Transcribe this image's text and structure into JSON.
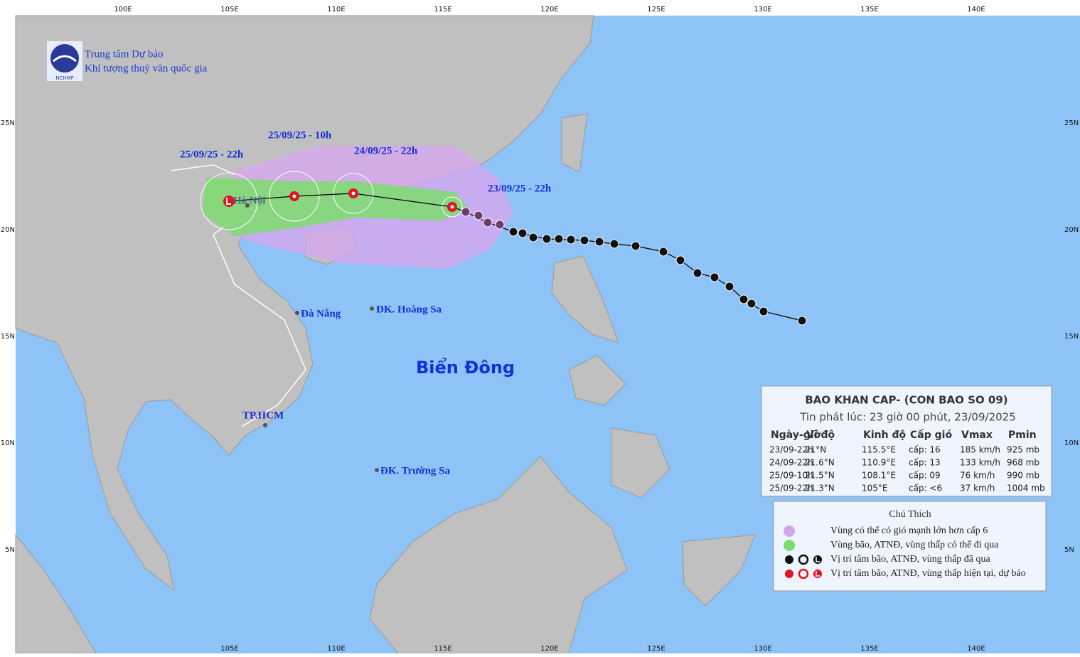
{
  "header": {
    "line1": "Trung tâm Dự báo",
    "line2": "Khí tượng thuỷ văn quốc gia",
    "logo": "NCHMF"
  },
  "lon_labels": [
    "100E",
    "105E",
    "110E",
    "115E",
    "120E",
    "125E",
    "130E",
    "135E",
    "140E"
  ],
  "lat_labels": [
    "25N",
    "20N",
    "15N",
    "10N",
    "5N"
  ],
  "forecast_labels": [
    "25/09/25 - 22h",
    "25/09/25 - 10h",
    "24/09/25 - 22h",
    "23/09/25 - 22h"
  ],
  "places": [
    "Hà Nội",
    "Đà Nẵng",
    "ĐK. Hoàng Sa",
    "Biển Đông",
    "TP.HCM",
    "ĐK. Trường Sa"
  ],
  "bulletin": {
    "title": "BAO KHAN CAP- (CON BAO SO 09)",
    "issued": "Tin phát lúc: 23 giờ 00 phút, 23/09/2025",
    "columns": [
      "Ngày-giờ",
      "Vĩ độ",
      "Kinh độ",
      "Cấp gió",
      "Vmax",
      "Pmin"
    ],
    "rows": [
      [
        "23/09-22h",
        "21°N",
        "115.5°E",
        "cấp: 16",
        "185 km/h",
        "925 mb"
      ],
      [
        "24/09-22h",
        "21.6°N",
        "110.9°E",
        "cấp: 13",
        "133 km/h",
        "968 mb"
      ],
      [
        "25/09-10h",
        "21.5°N",
        "108.1°E",
        "cấp: 09",
        "76 km/h",
        "990 mb"
      ],
      [
        "25/09-22h",
        "21.3°N",
        "105°E",
        "cấp: <6",
        "37 km/h",
        "1004 mb"
      ]
    ]
  },
  "legend": {
    "title": "Chú Thích",
    "items": [
      "Vùng có thể có gió mạnh lớn hơn cấp 6",
      "Vùng bão, ATNĐ, vùng thấp có thể đi qua",
      "Vị trí tâm bão, ATNĐ, vùng thấp đã qua",
      "Vị trí tâm bão, ATNĐ, vùng thấp hiện tại, dự báo"
    ]
  }
}
